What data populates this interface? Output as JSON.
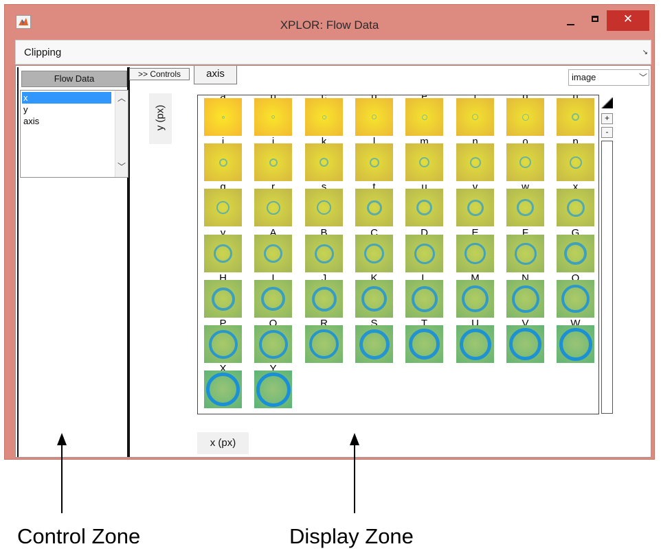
{
  "window": {
    "title": "XPLOR: Flow Data",
    "close_glyph": "✕"
  },
  "menubar": {
    "clipping_label": "Clipping",
    "dock_glyph": "↘"
  },
  "control_zone": {
    "header_button": "Flow Data",
    "list_items": [
      "x",
      "y",
      "axis"
    ],
    "selected_index": 0
  },
  "display_zone": {
    "controls_button": ">> Controls",
    "axis_tab": "axis",
    "display_mode": "image",
    "y_label": "y (px)",
    "x_label": "x (px)"
  },
  "colorbar": {
    "plus_label": "+",
    "minus_label": "-"
  },
  "grid": {
    "columns": 8,
    "labels": [
      "a",
      "b",
      "c",
      "d",
      "e",
      "f",
      "g",
      "h",
      "i",
      "j",
      "k",
      "l",
      "m",
      "n",
      "o",
      "p",
      "q",
      "r",
      "s",
      "t",
      "u",
      "v",
      "w",
      "x",
      "y",
      "A",
      "B",
      "C",
      "D",
      "E",
      "F",
      "G",
      "H",
      "I",
      "J",
      "K",
      "L",
      "M",
      "N",
      "O",
      "P",
      "Q",
      "R",
      "S",
      "T",
      "U",
      "V",
      "W",
      "X",
      "Y"
    ]
  },
  "annotations": {
    "control_zone_label": "Control Zone",
    "display_zone_label": "Display Zone"
  }
}
